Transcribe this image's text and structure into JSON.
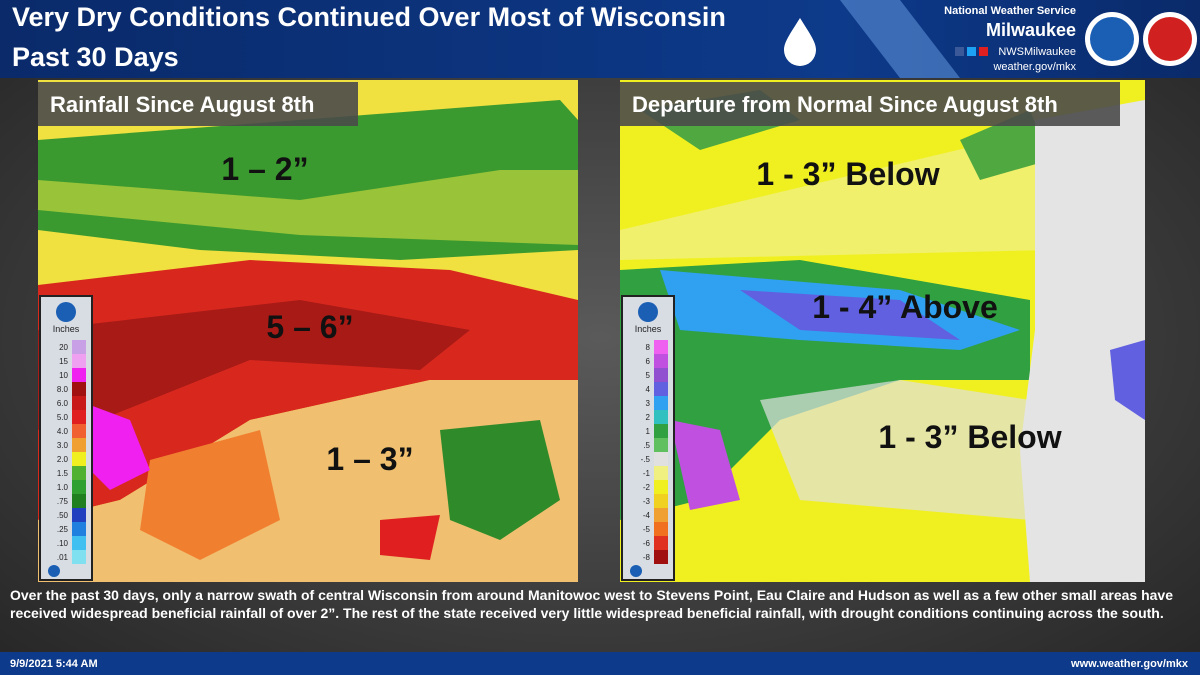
{
  "header": {
    "title_lines": [
      "Very Dry Conditions Continued Over Most of Wisconsin",
      "Past 30 Days"
    ],
    "office": "National Weather Service",
    "city": "Milwaukee",
    "social": "NWSMilwaukee",
    "web": "weather.gov/mkx"
  },
  "panels": [
    {
      "title": "Rainfall Since August 8th",
      "annotations": [
        "1 – 2”",
        "5 – 6”",
        "1 – 3”"
      ],
      "legend": {
        "unit": "Inches",
        "items": [
          {
            "label": "20",
            "color": "#c8a0e6"
          },
          {
            "label": "15",
            "color": "#f0a0f0"
          },
          {
            "label": "10",
            "color": "#f020f0"
          },
          {
            "label": "8.0",
            "color": "#a01010"
          },
          {
            "label": "6.0",
            "color": "#c81818"
          },
          {
            "label": "5.0",
            "color": "#e02020"
          },
          {
            "label": "4.0",
            "color": "#f06030"
          },
          {
            "label": "3.0",
            "color": "#f0a030"
          },
          {
            "label": "2.0",
            "color": "#f0f020"
          },
          {
            "label": "1.5",
            "color": "#50b030"
          },
          {
            "label": "1.0",
            "color": "#30a030"
          },
          {
            "label": ".75",
            "color": "#208020"
          },
          {
            "label": ".50",
            "color": "#2040c0"
          },
          {
            "label": ".25",
            "color": "#2080e0"
          },
          {
            "label": ".10",
            "color": "#40c0f0"
          },
          {
            "label": ".01",
            "color": "#80e0f0"
          }
        ]
      }
    },
    {
      "title": "Departure from Normal Since August 8th",
      "annotations": [
        "1 - 3” Below",
        "1 - 4” Above",
        "1 - 3” Below"
      ],
      "legend": {
        "unit": "Inches",
        "items": [
          {
            "label": "8",
            "color": "#f060f0"
          },
          {
            "label": "6",
            "color": "#c050e0"
          },
          {
            "label": "5",
            "color": "#9050d0"
          },
          {
            "label": "4",
            "color": "#6060e0"
          },
          {
            "label": "3",
            "color": "#30a0f0"
          },
          {
            "label": "2",
            "color": "#30c0c0"
          },
          {
            "label": "1",
            "color": "#30a040"
          },
          {
            "label": ".5",
            "color": "#60c060"
          },
          {
            "label": "-.5",
            "color": "#e0e0e0"
          },
          {
            "label": "-1",
            "color": "#f0f080"
          },
          {
            "label": "-2",
            "color": "#f0f020"
          },
          {
            "label": "-3",
            "color": "#f0d020"
          },
          {
            "label": "-4",
            "color": "#f0a030"
          },
          {
            "label": "-5",
            "color": "#f07020"
          },
          {
            "label": "-6",
            "color": "#e03020"
          },
          {
            "label": "-8",
            "color": "#a01010"
          }
        ]
      }
    }
  ],
  "caption": "Over the past 30 days, only a narrow swath of central Wisconsin from around Manitowoc west to Stevens Point, Eau Claire and Hudson as well as a few other small areas have received widespread beneficial rainfall of over 2”.  The rest of the state received very little widespread beneficial rainfall, with drought conditions continuing across the south.",
  "footer": {
    "timestamp": "9/9/2021 5:44 AM",
    "url": "www.weather.gov/mkx"
  }
}
